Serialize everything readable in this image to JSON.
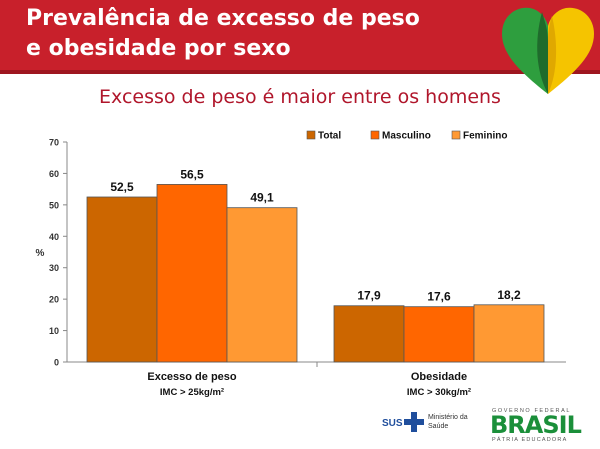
{
  "header": {
    "title_line1": "Prevalência de excesso de peso",
    "title_line2": "e obesidade por sexo"
  },
  "subtitle": "Excesso de peso é maior entre os homens",
  "colors": {
    "header_bg": "#c8202b",
    "subtitle_text": "#b0162b",
    "total": "#cc6600",
    "masculino": "#ff6600",
    "feminino": "#ff9933"
  },
  "chart_data": {
    "type": "bar",
    "categories": [
      "Excesso de peso",
      "Obesidade"
    ],
    "category_sublabels": [
      "IMC > 25kg/m²",
      "IMC > 30kg/m²"
    ],
    "series": [
      {
        "name": "Total",
        "values": [
          52.5,
          17.9
        ],
        "labels": [
          "52,5",
          "17,9"
        ],
        "color": "#cc6600"
      },
      {
        "name": "Masculino",
        "values": [
          56.5,
          17.6
        ],
        "labels": [
          "56,5",
          "17,6"
        ],
        "color": "#ff6600"
      },
      {
        "name": "Feminino",
        "values": [
          49.1,
          18.2
        ],
        "labels": [
          "49,1",
          "18,2"
        ],
        "color": "#ff9933"
      }
    ],
    "ylabel": "%",
    "ylim": [
      0,
      70
    ],
    "yticks": [
      0,
      10,
      20,
      30,
      40,
      50,
      60,
      70
    ],
    "grid": false,
    "legend_position": "top-right"
  },
  "footer": {
    "sus_label": "SUS",
    "ministerio_line1": "Ministério da",
    "ministerio_line2": "Saúde",
    "gov_top": "GOVERNO FEDERAL",
    "gov_main": "BRASIL",
    "gov_bottom": "PÁTRIA EDUCADORA"
  }
}
